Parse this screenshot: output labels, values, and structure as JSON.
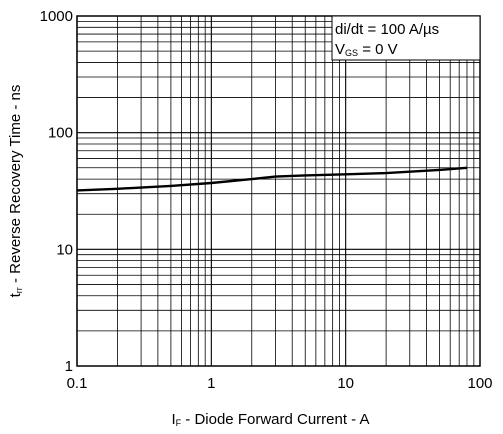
{
  "chart_data": {
    "type": "line",
    "x_scale": "log",
    "y_scale": "log",
    "xlim": [
      0.1,
      100
    ],
    "ylim": [
      1,
      1000
    ],
    "grid": true,
    "x_ticks": [
      "0.1",
      "1",
      "10",
      "100"
    ],
    "y_ticks": [
      "1",
      "10",
      "100",
      "1000"
    ],
    "xlabel": {
      "symbol": "I",
      "subscript": "F",
      "text": " - Diode Forward Current - A"
    },
    "ylabel": {
      "symbol": "t",
      "subscript": "rr",
      "text": " - Reverse Recovery Time - ns"
    },
    "annotations": [
      {
        "text": "di/dt = 100 A/µs"
      },
      {
        "symbol": "V",
        "subscript": "GS",
        "text": " = 0 V"
      }
    ],
    "series": [
      {
        "x": [
          0.1,
          0.2,
          0.5,
          1,
          2,
          3,
          5,
          10,
          20,
          50,
          80
        ],
        "y": [
          32,
          33,
          35,
          37,
          40,
          42,
          43,
          44,
          45,
          48,
          50
        ]
      }
    ]
  }
}
